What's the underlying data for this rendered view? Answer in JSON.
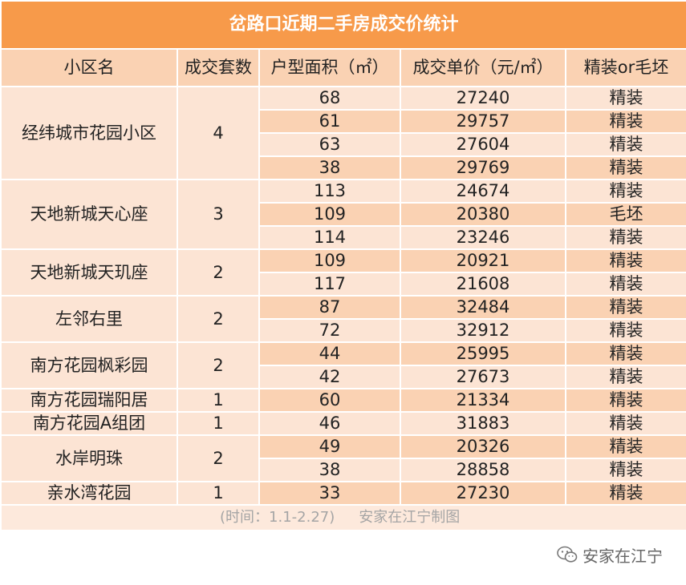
{
  "title": "岔路口近期二手房成交价统计",
  "headers": [
    "小区名",
    "成交套数",
    "户型面积（㎡）",
    "成交单价（元/㎡）",
    "精装or毛坯"
  ],
  "groups": [
    {
      "name": "经纬城市花园小区",
      "count": "4",
      "rows": [
        {
          "area": "68",
          "price": "27240",
          "decor": "精装"
        },
        {
          "area": "61",
          "price": "29757",
          "decor": "精装"
        },
        {
          "area": "63",
          "price": "27604",
          "decor": "精装"
        },
        {
          "area": "38",
          "price": "29769",
          "decor": "精装"
        }
      ]
    },
    {
      "name": "天地新城天心座",
      "count": "3",
      "rows": [
        {
          "area": "113",
          "price": "24674",
          "decor": "精装"
        },
        {
          "area": "109",
          "price": "20380",
          "decor": "毛坯"
        },
        {
          "area": "114",
          "price": "23246",
          "decor": "精装"
        }
      ]
    },
    {
      "name": "天地新城天玑座",
      "count": "2",
      "rows": [
        {
          "area": "109",
          "price": "20921",
          "decor": "精装"
        },
        {
          "area": "117",
          "price": "21608",
          "decor": "精装"
        }
      ]
    },
    {
      "name": "左邻右里",
      "count": "2",
      "rows": [
        {
          "area": "87",
          "price": "32484",
          "decor": "精装"
        },
        {
          "area": "72",
          "price": "32912",
          "decor": "精装"
        }
      ]
    },
    {
      "name": "南方花园枫彩园",
      "count": "2",
      "rows": [
        {
          "area": "44",
          "price": "25995",
          "decor": "精装"
        },
        {
          "area": "42",
          "price": "27673",
          "decor": "精装"
        }
      ]
    },
    {
      "name": "南方花园瑞阳居",
      "count": "1",
      "rows": [
        {
          "area": "60",
          "price": "21334",
          "decor": "精装"
        }
      ]
    },
    {
      "name": "南方花园A组团",
      "count": "1",
      "rows": [
        {
          "area": "46",
          "price": "31883",
          "decor": "精装"
        }
      ]
    },
    {
      "name": "水岸明珠",
      "count": "2",
      "rows": [
        {
          "area": "49",
          "price": "20326",
          "decor": "精装"
        },
        {
          "area": "38",
          "price": "28858",
          "decor": "精装"
        }
      ]
    },
    {
      "name": "亲水湾花园",
      "count": "1",
      "rows": [
        {
          "area": "33",
          "price": "27230",
          "decor": "精装"
        }
      ]
    }
  ],
  "footer": {
    "time": "(时间：1.1-2.27)",
    "author": "安家在江宁制图"
  },
  "watermark": {
    "text": "安家在江宁",
    "icon": "wechat-icon"
  },
  "colors": {
    "title_bg": "#f79a4a",
    "header_bg": "#fad2b3",
    "row_light": "#fce4d4",
    "row_dark": "#fad2b3",
    "footer_bg": "#fde9dc"
  }
}
